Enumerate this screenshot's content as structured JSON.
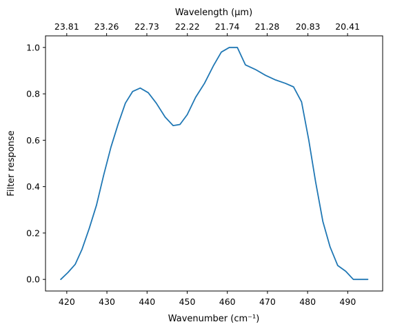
{
  "chart_data": {
    "type": "line",
    "title": "",
    "xlabel": "Wavenumber (cm⁻¹)",
    "ylabel": "Filter response",
    "top_xlabel": "Wavelength (μm)",
    "xlim": [
      414.7,
      498.7
    ],
    "ylim": [
      -0.05,
      1.05
    ],
    "xticks": [
      420,
      430,
      440,
      450,
      460,
      470,
      480,
      490
    ],
    "yticks": [
      0.0,
      0.2,
      0.4,
      0.6,
      0.8,
      1.0
    ],
    "top_ticks": [
      "23.81",
      "23.26",
      "22.73",
      "22.22",
      "21.74",
      "21.28",
      "20.83",
      "20.41"
    ],
    "grid": false,
    "series": [
      {
        "color": "#1f77b4",
        "x": [
          418.5,
          420.3,
          422.1,
          423.8,
          425.6,
          427.4,
          429.2,
          431.0,
          432.8,
          434.6,
          436.4,
          438.3,
          440.3,
          442.3,
          444.5,
          446.5,
          448.2,
          450.0,
          452.1,
          454.3,
          456.5,
          458.5,
          460.5,
          462.5,
          464.5,
          467.0,
          469.5,
          472.0,
          474.5,
          476.5,
          478.5,
          480.3,
          482.0,
          483.8,
          485.6,
          487.5,
          489.5,
          491.4,
          493.2,
          495.0
        ],
        "y": [
          0.0,
          0.03,
          0.065,
          0.13,
          0.22,
          0.32,
          0.45,
          0.57,
          0.67,
          0.76,
          0.81,
          0.825,
          0.805,
          0.76,
          0.7,
          0.663,
          0.668,
          0.71,
          0.785,
          0.845,
          0.92,
          0.98,
          1.0,
          1.0,
          0.925,
          0.905,
          0.88,
          0.86,
          0.845,
          0.83,
          0.765,
          0.6,
          0.42,
          0.25,
          0.14,
          0.06,
          0.035,
          0.0,
          0.0,
          0.0
        ]
      }
    ]
  }
}
